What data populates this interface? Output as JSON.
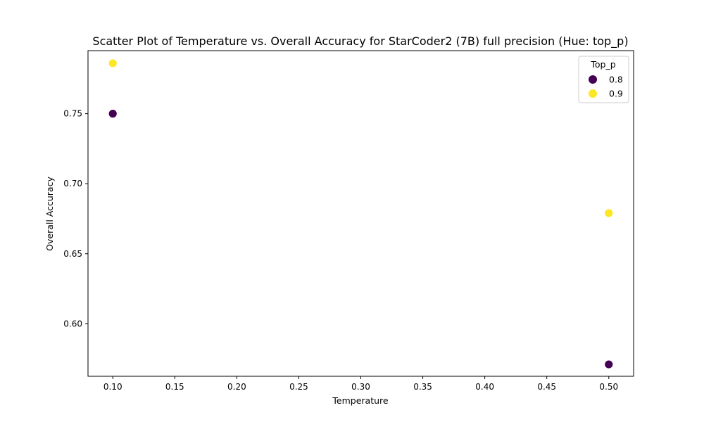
{
  "chart_data": {
    "type": "scatter",
    "title": "Scatter Plot of Temperature vs. Overall Accuracy for StarCoder2 (7B) full precision (Hue: top_p)",
    "xlabel": "Temperature",
    "ylabel": "Overall Accuracy",
    "xlim": [
      0.08,
      0.52
    ],
    "ylim": [
      0.5625,
      0.795
    ],
    "xticks": [
      0.1,
      0.15,
      0.2,
      0.25,
      0.3,
      0.35,
      0.4,
      0.45,
      0.5
    ],
    "xtick_labels": [
      "0.10",
      "0.15",
      "0.20",
      "0.25",
      "0.30",
      "0.35",
      "0.40",
      "0.45",
      "0.50"
    ],
    "yticks": [
      0.6,
      0.65,
      0.7,
      0.75
    ],
    "ytick_labels": [
      "0.60",
      "0.65",
      "0.70",
      "0.75"
    ],
    "grid": false,
    "legend": {
      "title": "Top_p",
      "position": "top-right"
    },
    "series": [
      {
        "name": "0.8",
        "color": "#440154",
        "points": [
          {
            "x": 0.1,
            "y": 0.75
          },
          {
            "x": 0.5,
            "y": 0.571
          }
        ]
      },
      {
        "name": "0.9",
        "color": "#fde725",
        "points": [
          {
            "x": 0.1,
            "y": 0.786
          },
          {
            "x": 0.5,
            "y": 0.679
          }
        ]
      }
    ]
  }
}
